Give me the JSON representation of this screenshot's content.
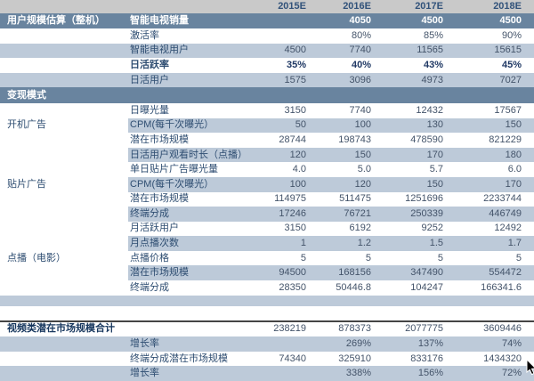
{
  "table": {
    "columns": [
      "2015E",
      "2016E",
      "2017E",
      "2018E"
    ],
    "rows": [
      {
        "type": "years",
        "values": [
          "2015E",
          "2016E",
          "2017E",
          "2018E"
        ]
      },
      {
        "type": "section",
        "group": "用户规模估算（整机）",
        "label": "智能电视销量",
        "values": [
          "",
          "4050",
          "4500",
          "4500"
        ]
      },
      {
        "type": "data",
        "label": "激活率",
        "values": [
          "",
          "80%",
          "85%",
          "90%"
        ],
        "stripe": "w"
      },
      {
        "type": "data",
        "label": "智能电视用户",
        "values": [
          "4500",
          "7740",
          "11565",
          "15615"
        ],
        "stripe": "l",
        "full_stripe": true
      },
      {
        "type": "data",
        "label": "日活跃率",
        "values": [
          "35%",
          "40%",
          "43%",
          "45%"
        ],
        "stripe": "w",
        "bold": true
      },
      {
        "type": "data",
        "label": "日活用户",
        "values": [
          "1575",
          "3096",
          "4973",
          "7027"
        ],
        "stripe": "l",
        "full_stripe": true
      },
      {
        "type": "section",
        "group": "变现模式"
      },
      {
        "type": "data",
        "group": "开机广告",
        "group_rowspan": 3,
        "label": "日曝光量",
        "values": [
          "3150",
          "7740",
          "12432",
          "17567"
        ],
        "stripe": "w"
      },
      {
        "type": "data",
        "label": "CPM(每千次曝光）",
        "values": [
          "50",
          "100",
          "130",
          "150"
        ],
        "stripe": "l"
      },
      {
        "type": "data",
        "label": "潜在市场规模",
        "values": [
          "28744",
          "198743",
          "478590",
          "821229"
        ],
        "stripe": "w"
      },
      {
        "type": "data",
        "group": "贴片广告",
        "group_rowspan": 5,
        "label": "日活用户观看时长（点播）",
        "values": [
          "120",
          "150",
          "170",
          "180"
        ],
        "stripe": "l"
      },
      {
        "type": "data",
        "label": "单日贴片广告曝光量",
        "values": [
          "4.0",
          "5.0",
          "5.7",
          "6.0"
        ],
        "stripe": "w"
      },
      {
        "type": "data",
        "label": "CPM(每千次曝光）",
        "values": [
          "100",
          "120",
          "150",
          "170"
        ],
        "stripe": "l"
      },
      {
        "type": "data",
        "label": "潜在市场规模",
        "values": [
          "114975",
          "511475",
          "1251696",
          "2233744"
        ],
        "stripe": "w"
      },
      {
        "type": "data",
        "label": "终端分成",
        "values": [
          "17246",
          "76721",
          "250339",
          "446749"
        ],
        "stripe": "l"
      },
      {
        "type": "data",
        "group": "点播（电影）",
        "group_rowspan": 5,
        "label": "月活跃用户",
        "values": [
          "3150",
          "6192",
          "9252",
          "12492"
        ],
        "stripe": "w"
      },
      {
        "type": "data",
        "label": "月点播次数",
        "values": [
          "1",
          "1.2",
          "1.5",
          "1.7"
        ],
        "stripe": "l"
      },
      {
        "type": "data",
        "label": "点播价格",
        "values": [
          "5",
          "5",
          "5",
          "5"
        ],
        "stripe": "w"
      },
      {
        "type": "data",
        "label": "潜在市场规模",
        "values": [
          "94500",
          "168156",
          "347490",
          "554472"
        ],
        "stripe": "l"
      },
      {
        "type": "data",
        "label": "终端分成",
        "values": [
          "28350",
          "50446.8",
          "104247",
          "166341.6"
        ],
        "stripe": "w"
      },
      {
        "type": "spacer",
        "stripe": "l"
      },
      {
        "type": "spacer",
        "stripe": "w"
      },
      {
        "type": "total",
        "label": "视频类潜在市场规模合计",
        "values": [
          "238219",
          "878373",
          "2077775",
          "3609446"
        ]
      },
      {
        "type": "data",
        "label": "增长率",
        "values": [
          "",
          "269%",
          "137%",
          "74%"
        ],
        "stripe": "l",
        "full_stripe": true
      },
      {
        "type": "data",
        "label": "终端分成潜在市场规模",
        "values": [
          "74340",
          "325910",
          "833176",
          "1434320"
        ],
        "stripe": "w"
      },
      {
        "type": "data",
        "label": "增长率",
        "values": [
          "",
          "338%",
          "156%",
          "72%"
        ],
        "stripe": "l",
        "full_stripe": true
      }
    ]
  },
  "colors": {
    "section_header_bg": "#69849F",
    "stripe_bg": "#BDCAD9",
    "years_band_bg": "#C9C9C9",
    "value_text": "#44546A",
    "bold_text": "#1F3864",
    "divider_line": "#454545"
  }
}
